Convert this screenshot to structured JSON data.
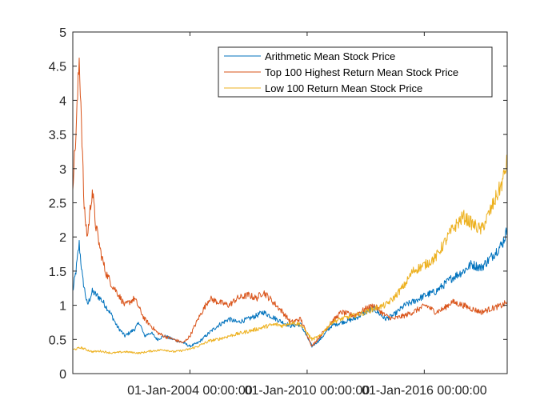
{
  "chart_data": {
    "type": "line",
    "title": "",
    "xlabel": "",
    "ylabel": "",
    "xlim": [
      "1998-01-01",
      "2020-03-31"
    ],
    "ylim": [
      0,
      5
    ],
    "grid": false,
    "legend_position": "top-right",
    "x_ticks": [
      "2004-01-01",
      "2010-01-01",
      "2016-01-01"
    ],
    "x_tick_labels": [
      "01-Jan-2004 00:00:00",
      "01-Jan-2010 00:00:00",
      "01-Jan-2016 00:00:00"
    ],
    "y_ticks": [
      0,
      0.5,
      1,
      1.5,
      2,
      2.5,
      3,
      3.5,
      4,
      4.5,
      5
    ],
    "y_tick_labels": [
      "0",
      "0.5",
      "1",
      "1.5",
      "2",
      "2.5",
      "3",
      "3.5",
      "4",
      "4.5",
      "5"
    ],
    "series": [
      {
        "name": "Arithmetic Mean Stock Price",
        "color": "#0072BD",
        "x": [
          "1998-01-01",
          "1998-03-01",
          "1998-05-01",
          "1998-07-01",
          "1998-10-01",
          "1999-01-01",
          "1999-06-01",
          "1999-09-01",
          "2000-01-01",
          "2000-04-01",
          "2000-09-01",
          "2001-03-01",
          "2001-06-01",
          "2001-09-01",
          "2002-01-01",
          "2002-05-01",
          "2002-09-01",
          "2003-03-01",
          "2003-09-01",
          "2004-01-01",
          "2004-06-01",
          "2005-01-01",
          "2005-06-01",
          "2006-01-01",
          "2006-06-01",
          "2007-01-01",
          "2007-06-01",
          "2007-10-01",
          "2008-06-01",
          "2008-10-01",
          "2009-03-01",
          "2009-09-01",
          "2010-04-01",
          "2010-09-01",
          "2011-04-01",
          "2011-10-01",
          "2012-06-01",
          "2013-01-01",
          "2013-06-01",
          "2014-01-01",
          "2014-06-01",
          "2015-01-01",
          "2015-06-01",
          "2016-02-01",
          "2016-08-01",
          "2017-01-01",
          "2017-06-01",
          "2018-01-01",
          "2018-06-01",
          "2018-12-01",
          "2019-06-01",
          "2020-01-01",
          "2020-03-31"
        ],
        "y": [
          1.2,
          1.5,
          1.9,
          1.4,
          1.0,
          1.2,
          1.1,
          1.0,
          0.85,
          0.7,
          0.55,
          0.65,
          0.75,
          0.55,
          0.6,
          0.5,
          0.55,
          0.5,
          0.45,
          0.4,
          0.45,
          0.6,
          0.7,
          0.8,
          0.75,
          0.8,
          0.85,
          0.9,
          0.8,
          0.75,
          0.7,
          0.72,
          0.4,
          0.5,
          0.7,
          0.75,
          0.8,
          0.9,
          0.95,
          0.8,
          0.85,
          1.0,
          1.05,
          1.15,
          1.2,
          1.3,
          1.4,
          1.5,
          1.6,
          1.55,
          1.7,
          1.9,
          2.1
        ]
      },
      {
        "name": "Top 100 Highest Return Mean Stock Price",
        "color": "#D95319",
        "x": [
          "1998-01-01",
          "1998-03-01",
          "1998-05-01",
          "1998-06-01",
          "1998-08-01",
          "1998-10-01",
          "1999-01-01",
          "1999-03-01",
          "1999-06-01",
          "1999-09-01",
          "2000-01-01",
          "2000-04-01",
          "2000-09-01",
          "2001-03-01",
          "2001-06-01",
          "2001-09-01",
          "2002-01-01",
          "2002-05-01",
          "2002-09-01",
          "2003-03-01",
          "2003-09-01",
          "2004-01-01",
          "2004-06-01",
          "2005-01-01",
          "2005-06-01",
          "2006-01-01",
          "2006-06-01",
          "2007-01-01",
          "2007-06-01",
          "2007-10-01",
          "2008-06-01",
          "2008-10-01",
          "2009-03-01",
          "2009-09-01",
          "2010-04-01",
          "2010-09-01",
          "2011-04-01",
          "2011-10-01",
          "2012-06-01",
          "2013-01-01",
          "2013-06-01",
          "2014-01-01",
          "2014-06-01",
          "2015-01-01",
          "2015-06-01",
          "2016-02-01",
          "2016-08-01",
          "2017-01-01",
          "2017-06-01",
          "2018-01-01",
          "2018-06-01",
          "2018-12-01",
          "2019-06-01",
          "2020-01-01",
          "2020-03-31"
        ],
        "y": [
          2.8,
          3.5,
          4.6,
          4.0,
          2.4,
          2.0,
          2.7,
          2.2,
          1.8,
          1.5,
          1.3,
          1.2,
          1.0,
          1.1,
          0.95,
          0.8,
          0.7,
          0.6,
          0.55,
          0.5,
          0.45,
          0.55,
          0.8,
          1.1,
          1.05,
          1.0,
          1.1,
          1.15,
          1.1,
          1.2,
          1.0,
          0.9,
          0.75,
          0.8,
          0.4,
          0.55,
          0.75,
          0.9,
          0.85,
          0.95,
          1.0,
          0.85,
          0.8,
          0.85,
          0.9,
          1.0,
          0.9,
          0.95,
          1.05,
          1.0,
          0.95,
          0.9,
          0.95,
          1.0,
          1.05
        ]
      },
      {
        "name": "Low 100 Return Mean Stock Price",
        "color": "#EDB120",
        "x": [
          "1998-01-01",
          "1998-06-01",
          "1999-01-01",
          "1999-06-01",
          "2000-01-01",
          "2000-09-01",
          "2001-06-01",
          "2002-01-01",
          "2002-09-01",
          "2003-03-01",
          "2003-09-01",
          "2004-01-01",
          "2004-06-01",
          "2005-01-01",
          "2005-06-01",
          "2006-01-01",
          "2006-06-01",
          "2007-01-01",
          "2007-06-01",
          "2008-01-01",
          "2008-06-01",
          "2008-10-01",
          "2009-03-01",
          "2009-09-01",
          "2010-04-01",
          "2010-09-01",
          "2011-04-01",
          "2011-10-01",
          "2012-06-01",
          "2013-01-01",
          "2013-06-01",
          "2014-01-01",
          "2014-06-01",
          "2015-01-01",
          "2015-06-01",
          "2016-02-01",
          "2016-08-01",
          "2017-01-01",
          "2017-06-01",
          "2018-01-01",
          "2018-06-01",
          "2018-12-01",
          "2019-06-01",
          "2020-01-01",
          "2020-03-31"
        ],
        "y": [
          0.35,
          0.38,
          0.32,
          0.33,
          0.3,
          0.32,
          0.3,
          0.33,
          0.35,
          0.32,
          0.34,
          0.36,
          0.4,
          0.48,
          0.5,
          0.55,
          0.58,
          0.62,
          0.65,
          0.7,
          0.72,
          0.7,
          0.75,
          0.72,
          0.5,
          0.55,
          0.75,
          0.8,
          0.85,
          0.9,
          0.95,
          1.0,
          1.1,
          1.3,
          1.5,
          1.6,
          1.7,
          1.9,
          2.1,
          2.3,
          2.2,
          2.1,
          2.4,
          2.8,
          3.1
        ]
      }
    ]
  }
}
